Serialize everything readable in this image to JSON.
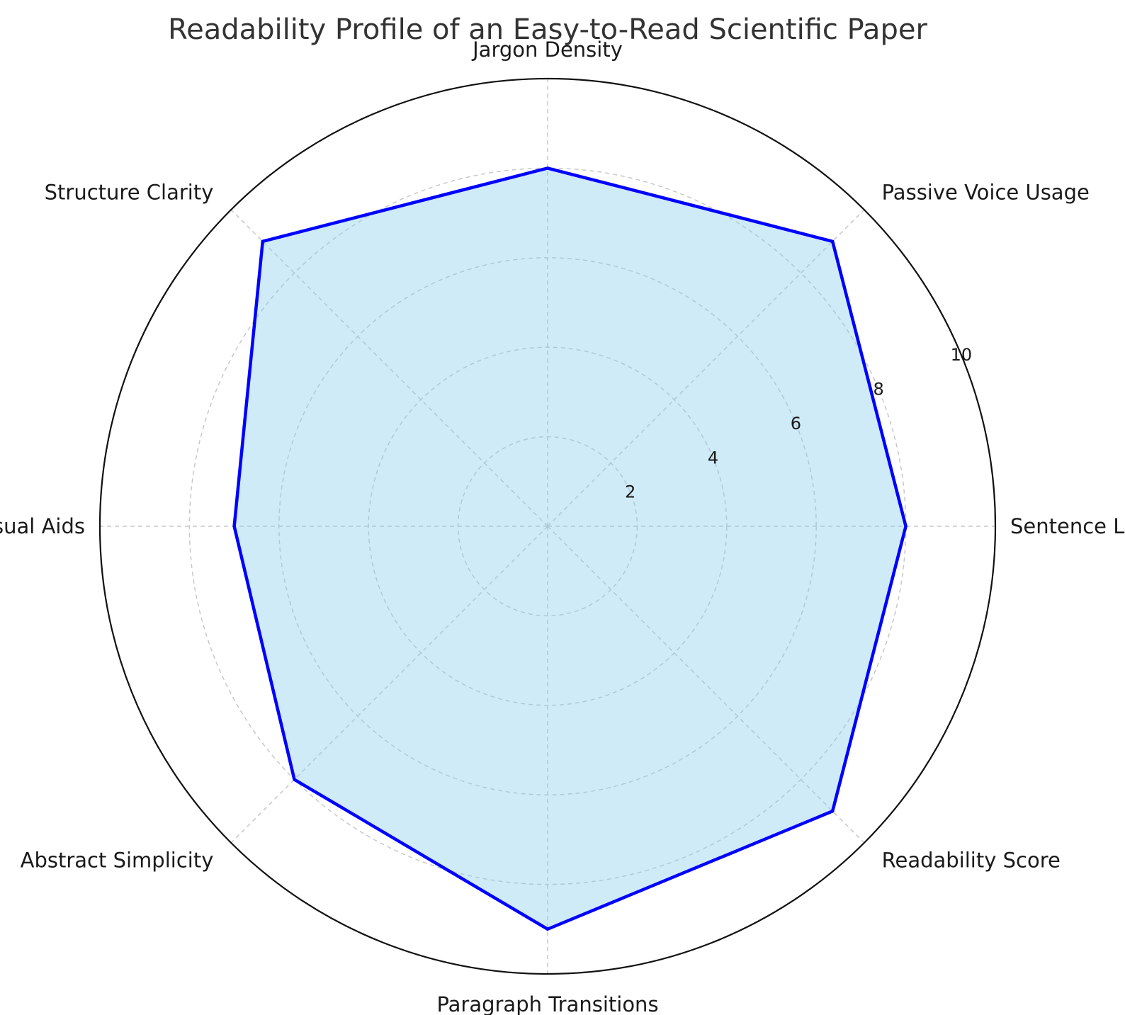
{
  "chart_data": {
    "type": "radar",
    "title": "Readability Profile of an Easy-to-Read Scientific Paper",
    "categories": [
      "Sentence Length",
      "Passive Voice Usage",
      "Jargon Density",
      "Structure Clarity",
      "Visual Aids",
      "Abstract Simplicity",
      "Paragraph Transitions",
      "Readability Score"
    ],
    "series": [
      {
        "values": [
          8,
          9,
          8,
          9,
          7,
          8,
          9,
          9
        ]
      }
    ],
    "rlim": [
      0,
      10
    ],
    "rticks": [
      2,
      4,
      6,
      8,
      10
    ],
    "rtick_labels": [
      "2",
      "4",
      "6",
      "8",
      "10"
    ],
    "grid": true,
    "colors": {
      "line": "#0000ff",
      "fill": "#87ceeb",
      "grid": "#c8c8c8",
      "outer": "#111111"
    }
  }
}
